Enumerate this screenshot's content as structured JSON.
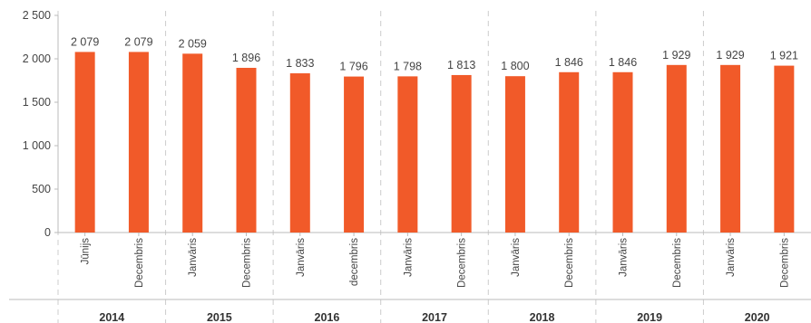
{
  "chart_data": {
    "type": "bar",
    "title": "",
    "xlabel": "",
    "ylabel": "",
    "ylim": [
      0,
      2500
    ],
    "yticks": [
      0,
      500,
      1000,
      1500,
      2000,
      2500
    ],
    "ytick_labels": [
      "0",
      "500",
      "1 000",
      "1 500",
      "2 000",
      "2 500"
    ],
    "bar_color": "#f15a29",
    "grid": false,
    "categories": [
      "Jūnijs",
      "Decembris",
      "Janvāris",
      "Decembris",
      "Janvāris",
      "decembris",
      "Janvāris",
      "Decembris",
      "Janvāris",
      "Decembris",
      "Janvāris",
      "Decembris",
      "Janvāris",
      "Decembris"
    ],
    "values": [
      2079,
      2079,
      2059,
      1896,
      1833,
      1796,
      1798,
      1813,
      1800,
      1846,
      1846,
      1929,
      1929,
      1921
    ],
    "value_labels": [
      "2 079",
      "2 079",
      "2 059",
      "1 896",
      "1 833",
      "1 796",
      "1 798",
      "1 813",
      "1 800",
      "1 846",
      "1 846",
      "1 929",
      "1 929",
      "1 921"
    ],
    "groups": [
      "2014",
      "2015",
      "2016",
      "2017",
      "2018",
      "2019",
      "2020"
    ]
  }
}
